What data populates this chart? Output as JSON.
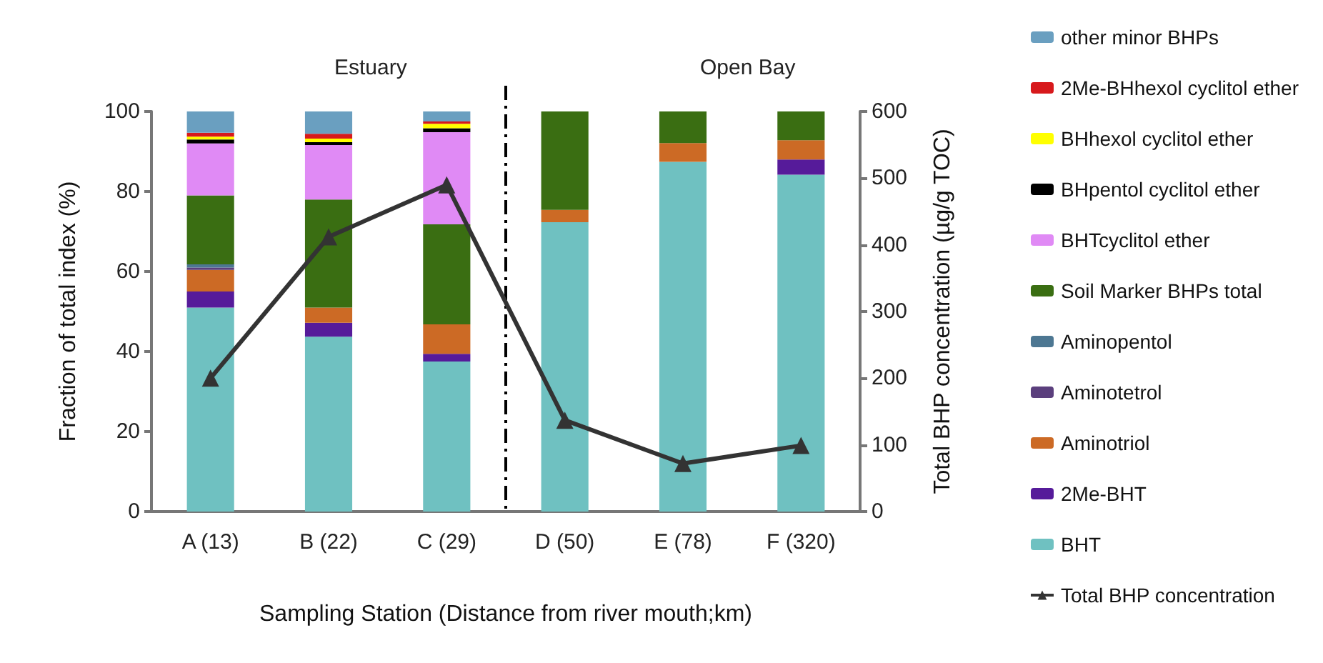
{
  "chart_data": {
    "type": "bar",
    "stacked": true,
    "xlabel": "Sampling Station (Distance from river mouth;km)",
    "ylabel": "Fraction of total index (%)",
    "y2label": "Total BHP concentration (µg/g TOC)",
    "categories": [
      "A (13)",
      "B (22)",
      "C (29)",
      "D (50)",
      "E (78)",
      "F (320)"
    ],
    "series": [
      {
        "name": "BHT",
        "color": "#6fc1c1",
        "values": [
          51,
          43.7,
          37.5,
          72.3,
          87.4,
          84.2
        ]
      },
      {
        "name": "2Me-BHT",
        "color": "#561b9a",
        "values": [
          4,
          3.5,
          1.9,
          0,
          0,
          3.8
        ]
      },
      {
        "name": "Aminotriol",
        "color": "#cc6a25",
        "values": [
          5.4,
          3.8,
          7.4,
          3.1,
          4.7,
          4.8
        ]
      },
      {
        "name": "Aminotetrol",
        "color": "#5b3f7d",
        "values": [
          0.6,
          0,
          0,
          0,
          0,
          0
        ]
      },
      {
        "name": "Aminopentol",
        "color": "#4d7792",
        "values": [
          0.8,
          0,
          0,
          0,
          0,
          0
        ]
      },
      {
        "name": "Soil Marker BHPs total",
        "color": "#3a6e12",
        "values": [
          17.2,
          27,
          25,
          24.6,
          7.9,
          7.2
        ]
      },
      {
        "name": "BHTcyclitol ether",
        "color": "#e08af5",
        "values": [
          13,
          13.6,
          23,
          0,
          0,
          0
        ]
      },
      {
        "name": "BHpentol cyclitol ether",
        "color": "#000000",
        "values": [
          1,
          0.7,
          1,
          0,
          0,
          0
        ]
      },
      {
        "name": "BHhexol cyclitol ether",
        "color": "#ffff00",
        "values": [
          0.7,
          0.9,
          1.1,
          0,
          0,
          0
        ]
      },
      {
        "name": "2Me-BHhexol cyclitol ether",
        "color": "#d7191c",
        "values": [
          1,
          1.2,
          0.6,
          0,
          0,
          0
        ]
      },
      {
        "name": "other minor BHPs",
        "color": "#6a9fc0",
        "values": [
          5.3,
          5.6,
          2.5,
          0,
          0,
          0
        ]
      },
      {
        "name": "Total BHP concentration",
        "type": "line",
        "axis": "y2",
        "color": "#333333",
        "marker": "triangle",
        "values": [
          200,
          412,
          490,
          137,
          72,
          99
        ]
      }
    ],
    "ylim": [
      0,
      100
    ],
    "yticks": [
      0,
      20,
      40,
      60,
      80,
      100
    ],
    "y2lim": [
      0,
      600
    ],
    "y2ticks": [
      0,
      100,
      200,
      300,
      400,
      500,
      600
    ],
    "annotations": [
      "Estuary",
      "Open Bay"
    ],
    "grid": false,
    "legend": "right"
  }
}
